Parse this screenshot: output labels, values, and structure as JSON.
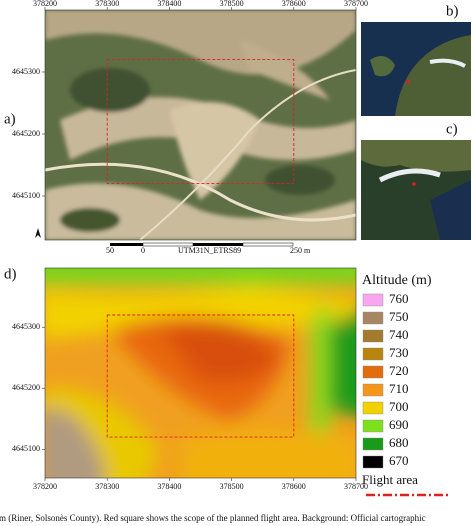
{
  "panels": {
    "a": {
      "label": "a)",
      "xticks": [
        378200,
        378300,
        378400,
        378500,
        378600,
        378700
      ],
      "yticks": [
        4645300,
        4645200,
        4645100
      ],
      "xlim": [
        378200,
        378700
      ],
      "ylim": [
        4645029,
        4645400
      ]
    },
    "b": {
      "label": "b)"
    },
    "c": {
      "label": "c)"
    },
    "d": {
      "label": "d)",
      "xticks": [
        378200,
        378300,
        378400,
        378500,
        378600,
        378700
      ],
      "yticks": [
        4645300,
        4645200,
        4645100
      ],
      "xlim": [
        378200,
        378700
      ],
      "ylim": [
        4645053,
        4645397
      ]
    }
  },
  "scale_bar": {
    "labels": [
      "50",
      "0",
      "UTM31N_ETRS89",
      "250 m"
    ]
  },
  "flight_area": {
    "x": [
      378300,
      378600
    ],
    "y": [
      4645120,
      4645320
    ],
    "color": "#e0201e"
  },
  "legend": {
    "title": "Altitude (m)",
    "items": [
      {
        "value": 760,
        "color": "#f7a6ef"
      },
      {
        "value": 750,
        "color": "#a88662"
      },
      {
        "value": 740,
        "color": "#a47b2e"
      },
      {
        "value": 730,
        "color": "#b8860f"
      },
      {
        "value": 720,
        "color": "#e36c0d"
      },
      {
        "value": 710,
        "color": "#f5961c"
      },
      {
        "value": 700,
        "color": "#f2d100"
      },
      {
        "value": 690,
        "color": "#7ee01c"
      },
      {
        "value": 680,
        "color": "#199a19"
      },
      {
        "value": 670,
        "color": "#000000"
      }
    ],
    "flight_area": "Flight area"
  },
  "caption": "rm (Riner, Solsonès County). Red square shows the scope of the planned flight area. Background: Official cartographic"
}
